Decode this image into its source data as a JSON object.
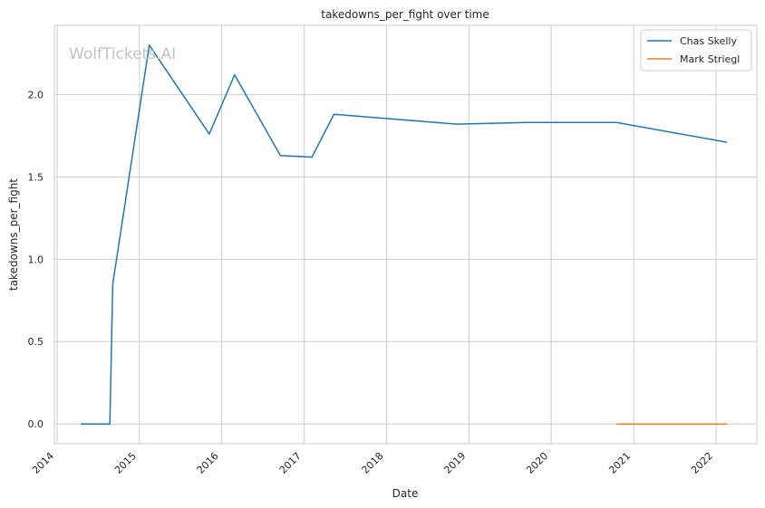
{
  "chart_data": {
    "type": "line",
    "title": "takedowns_per_fight over time",
    "xlabel": "Date",
    "ylabel": "takedowns_per_fight",
    "watermark": "WolfTickets.AI",
    "x_ticks": [
      "2014",
      "2015",
      "2016",
      "2017",
      "2018",
      "2019",
      "2020",
      "2021",
      "2022"
    ],
    "y_ticks": [
      "0.0",
      "0.5",
      "1.0",
      "1.5",
      "2.0"
    ],
    "xlim": [
      "2013-12-20",
      "2022-07-01"
    ],
    "ylim": [
      -0.12,
      2.42
    ],
    "grid": true,
    "legend_position": "top-right",
    "series": [
      {
        "name": "Chas Skelly",
        "color": "#1f77b4",
        "points": [
          {
            "x": "2014-04-16",
            "y": 0.0
          },
          {
            "x": "2014-08-23",
            "y": 0.0
          },
          {
            "x": "2014-09-05",
            "y": 0.85
          },
          {
            "x": "2015-02-14",
            "y": 2.3
          },
          {
            "x": "2015-11-07",
            "y": 1.76
          },
          {
            "x": "2016-02-27",
            "y": 2.12
          },
          {
            "x": "2016-09-17",
            "y": 1.63
          },
          {
            "x": "2017-02-04",
            "y": 1.62
          },
          {
            "x": "2017-05-13",
            "y": 1.88
          },
          {
            "x": "2018-11-10",
            "y": 1.82
          },
          {
            "x": "2019-09-14",
            "y": 1.83
          },
          {
            "x": "2020-10-17",
            "y": 1.83
          },
          {
            "x": "2022-02-19",
            "y": 1.71
          }
        ]
      },
      {
        "name": "Mark Striegl",
        "color": "#ff7f0e",
        "points": [
          {
            "x": "2020-10-17",
            "y": 0.0
          },
          {
            "x": "2022-02-19",
            "y": 0.0
          }
        ]
      }
    ]
  }
}
